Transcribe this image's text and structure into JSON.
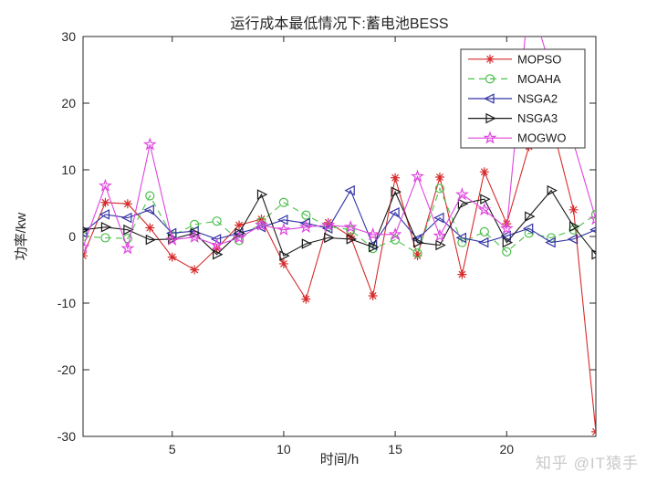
{
  "title": "运行成本最低情况下:蓄电池BESS",
  "watermark": "知乎 @IT猿手",
  "chart_data": {
    "type": "line",
    "title": "运行成本最低情况下:蓄电池BESS",
    "xlabel": "时间/h",
    "ylabel": "功率/kw",
    "xlim": [
      1,
      24
    ],
    "ylim": [
      -30,
      30
    ],
    "xticks": [
      5,
      10,
      15,
      20
    ],
    "yticks": [
      -30,
      -20,
      -10,
      0,
      10,
      20,
      30
    ],
    "grid": false,
    "legend_position": "top-right",
    "x": [
      1,
      2,
      3,
      4,
      5,
      6,
      7,
      8,
      9,
      10,
      11,
      12,
      13,
      14,
      15,
      16,
      17,
      18,
      19,
      20,
      21,
      22,
      23,
      24
    ],
    "series": [
      {
        "name": "MOPSO",
        "color": "#d62b2b",
        "line": "solid",
        "marker": "asterisk",
        "values": [
          -2.9,
          5.1,
          4.9,
          1.3,
          -3.1,
          -5.0,
          -1.8,
          1.7,
          2.6,
          -4.1,
          -9.4,
          2.1,
          0.0,
          -8.9,
          8.8,
          -2.9,
          8.9,
          -5.7,
          9.7,
          1.9,
          13.5,
          17.2,
          4.0,
          -29.3
        ]
      },
      {
        "name": "MOAHA",
        "color": "#4cbf4c",
        "line": "dashed",
        "marker": "circle",
        "values": [
          0.0,
          -0.2,
          -0.3,
          6.1,
          0.1,
          1.8,
          2.3,
          -0.6,
          2.2,
          5.1,
          3.2,
          1.5,
          1.0,
          -1.8,
          -0.5,
          -2.5,
          7.2,
          -0.9,
          0.7,
          -2.3,
          0.5,
          -0.2,
          1.0,
          3.3
        ]
      },
      {
        "name": "NSGA2",
        "color": "#3333a6",
        "line": "solid",
        "marker": "triangle-left",
        "values": [
          0.6,
          3.3,
          2.8,
          4.0,
          0.5,
          0.8,
          -0.4,
          0.5,
          1.4,
          2.5,
          2.0,
          1.2,
          6.9,
          -1.3,
          3.6,
          -0.4,
          2.8,
          -0.2,
          -0.9,
          0.1,
          1.2,
          -0.9,
          -0.4,
          1.0
        ]
      },
      {
        "name": "NSGA3",
        "color": "#1a1a1a",
        "line": "solid",
        "marker": "triangle-right",
        "values": [
          1.0,
          1.4,
          1.0,
          -0.5,
          -0.4,
          0.5,
          -2.7,
          0.5,
          6.3,
          -2.9,
          -1.1,
          -0.2,
          -0.4,
          -1.6,
          6.7,
          -0.9,
          -1.3,
          4.9,
          5.6,
          -0.9,
          3.0,
          6.9,
          1.5,
          -2.7
        ]
      },
      {
        "name": "MOGWO",
        "color": "#df46df",
        "line": "solid",
        "marker": "star",
        "values": [
          -1.6,
          7.6,
          -1.8,
          13.8,
          -0.5,
          -0.1,
          -1.3,
          -0.2,
          1.7,
          1.0,
          1.4,
          1.7,
          1.4,
          0.3,
          0.3,
          9.0,
          0.1,
          6.3,
          4.0,
          1.2,
          36.0,
          25.0,
          14.0,
          2.6
        ]
      }
    ]
  }
}
